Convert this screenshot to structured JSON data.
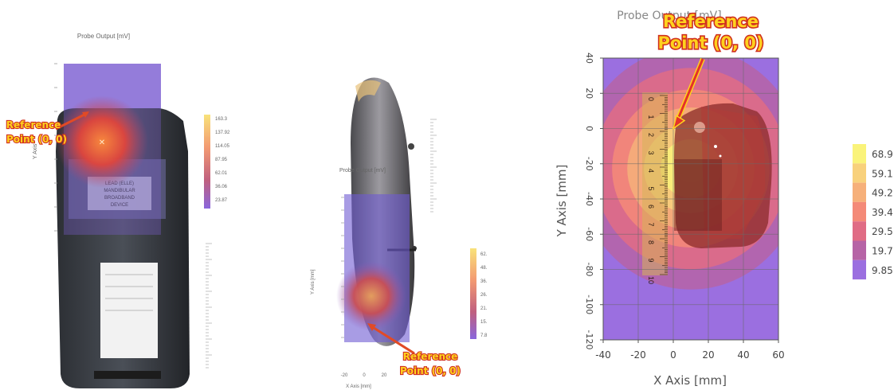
{
  "panels": {
    "left": {
      "title": "Probe Output [mV]",
      "ylabel": "Y Axis",
      "legend_values": [
        "163.3",
        "137.92",
        "114.05",
        "87.95",
        "62.01",
        "36.06",
        "23.87"
      ],
      "device_label_lines": [
        "LEAD (ELLE)",
        "MANDIBULAR",
        "BROADBAND",
        "DEVICE"
      ],
      "annotation": "Reference\nPoint (0, 0)"
    },
    "middle": {
      "title": "Probe Output [mV]",
      "ylabel": "Y Axis [mm]",
      "xlabel": "X Axis [mm]",
      "xticks": [
        "-20",
        "0",
        "20"
      ],
      "legend_values": [
        "62.",
        "48.",
        "36.",
        "26.",
        "21.",
        "15.",
        "7.8"
      ],
      "annotation": "Reference\nPoint (0, 0)"
    }
  },
  "chart_data": {
    "type": "heatmap",
    "title": "Probe Output [mV]",
    "xlabel": "X Axis [mm]",
    "ylabel": "Y Axis [mm]",
    "xlim": [
      -40,
      60
    ],
    "ylim": [
      -120,
      40
    ],
    "xticks": [
      -40,
      -20,
      0,
      20,
      40,
      60
    ],
    "yticks": [
      -120,
      -100,
      -80,
      -60,
      -40,
      -20,
      0,
      20,
      40
    ],
    "ytick_labels": [
      "-120",
      "-100",
      "-80",
      "-60",
      "-40",
      "-20",
      "0",
      "20",
      "40"
    ],
    "legend_values": [
      68.9,
      59.1,
      49.2,
      39.4,
      29.5,
      19.7,
      9.85
    ],
    "legend_colors": [
      "#faf37a",
      "#f8d17c",
      "#f6b07a",
      "#f48a78",
      "#e06c85",
      "#b664a6",
      "#9b6fe0"
    ],
    "hotspot": {
      "x": 10,
      "y": -20
    },
    "grid": true,
    "annotation": {
      "text": "Reference\nPoint (0, 0)",
      "point": [
        0,
        0
      ]
    },
    "ruler_labels": [
      "0",
      "1",
      "2",
      "3",
      "4",
      "5",
      "6",
      "7",
      "8",
      "9",
      "10"
    ]
  }
}
